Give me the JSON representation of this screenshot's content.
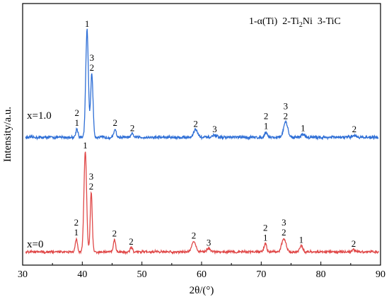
{
  "chart_data": {
    "type": "line",
    "title": "",
    "xlabel": "2θ/(°)",
    "ylabel": "Intensity/a.u.",
    "xlim": [
      30,
      90
    ],
    "xticks": [
      "30",
      "40",
      "50",
      "60",
      "70",
      "80",
      "90"
    ],
    "legend": {
      "position": "top-right",
      "entries": [
        {
          "num": "1",
          "phase": "α(Ti)"
        },
        {
          "num": "2",
          "phase": "Ti",
          "sub": "2",
          "rest": "Ni"
        },
        {
          "num": "3",
          "phase": "TiC"
        }
      ]
    },
    "series": [
      {
        "name": "x=1.0",
        "color": "#2f6fd6",
        "baseline": 0.08,
        "noise": 0.012,
        "peaks": [
          {
            "x": 39.1,
            "h": 0.08,
            "w": 0.18
          },
          {
            "x": 40.8,
            "h": 1.0,
            "w": 0.22
          },
          {
            "x": 41.6,
            "h": 0.59,
            "w": 0.2
          },
          {
            "x": 45.5,
            "h": 0.08,
            "w": 0.18
          },
          {
            "x": 48.4,
            "h": 0.03,
            "w": 0.2
          },
          {
            "x": 59.0,
            "h": 0.07,
            "w": 0.35
          },
          {
            "x": 62.2,
            "h": 0.02,
            "w": 0.3
          },
          {
            "x": 70.8,
            "h": 0.05,
            "w": 0.22
          },
          {
            "x": 74.1,
            "h": 0.14,
            "w": 0.35
          },
          {
            "x": 77.0,
            "h": 0.03,
            "w": 0.3
          },
          {
            "x": 85.6,
            "h": 0.02,
            "w": 0.3
          }
        ],
        "labels": [
          {
            "x": 39.1,
            "text": [
              "2",
              "1"
            ]
          },
          {
            "x": 40.8,
            "text": [
              "1"
            ]
          },
          {
            "x": 41.6,
            "text": [
              "3",
              "2"
            ]
          },
          {
            "x": 45.5,
            "text": [
              "2"
            ]
          },
          {
            "x": 48.4,
            "text": [
              "2"
            ]
          },
          {
            "x": 59.0,
            "text": [
              "2"
            ]
          },
          {
            "x": 62.2,
            "text": [
              "3"
            ]
          },
          {
            "x": 70.8,
            "text": [
              "2",
              "1"
            ]
          },
          {
            "x": 74.1,
            "text": [
              "3",
              "2"
            ]
          },
          {
            "x": 77.0,
            "text": [
              "1"
            ]
          },
          {
            "x": 85.6,
            "text": [
              "2"
            ]
          }
        ]
      },
      {
        "name": "x=0",
        "color": "#e04848",
        "baseline": 0.06,
        "noise": 0.01,
        "peaks": [
          {
            "x": 39.0,
            "h": 0.13,
            "w": 0.18
          },
          {
            "x": 40.5,
            "h": 0.98,
            "w": 0.22
          },
          {
            "x": 41.5,
            "h": 0.58,
            "w": 0.17
          },
          {
            "x": 45.4,
            "h": 0.12,
            "w": 0.18
          },
          {
            "x": 48.2,
            "h": 0.04,
            "w": 0.2
          },
          {
            "x": 58.7,
            "h": 0.1,
            "w": 0.35
          },
          {
            "x": 61.2,
            "h": 0.03,
            "w": 0.3
          },
          {
            "x": 70.7,
            "h": 0.08,
            "w": 0.22
          },
          {
            "x": 73.8,
            "h": 0.13,
            "w": 0.35
          },
          {
            "x": 76.7,
            "h": 0.06,
            "w": 0.25
          },
          {
            "x": 85.5,
            "h": 0.02,
            "w": 0.3
          }
        ],
        "labels": [
          {
            "x": 39.0,
            "text": [
              "2",
              "1"
            ]
          },
          {
            "x": 40.5,
            "text": [
              "1"
            ]
          },
          {
            "x": 41.5,
            "text": [
              "3",
              "2"
            ]
          },
          {
            "x": 45.4,
            "text": [
              "2"
            ]
          },
          {
            "x": 48.2,
            "text": [
              "2"
            ]
          },
          {
            "x": 58.7,
            "text": [
              "2"
            ]
          },
          {
            "x": 61.2,
            "text": [
              "3"
            ]
          },
          {
            "x": 70.7,
            "text": [
              "2",
              "1"
            ]
          },
          {
            "x": 73.8,
            "text": [
              "3",
              "2"
            ]
          },
          {
            "x": 76.7,
            "text": [
              "1"
            ]
          },
          {
            "x": 85.5,
            "text": [
              "2"
            ]
          }
        ]
      }
    ]
  }
}
